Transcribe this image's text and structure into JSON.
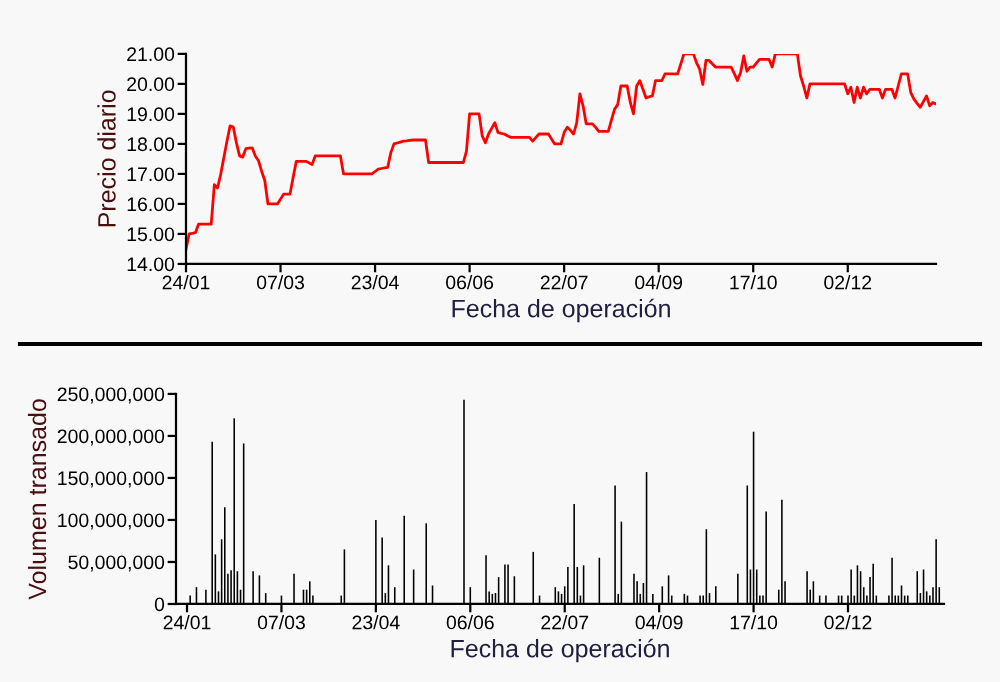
{
  "chart_data": [
    {
      "type": "line",
      "xlabel": "Fecha de operación",
      "ylabel": "Precio diario",
      "categories": [
        "24/01",
        null,
        null,
        null,
        null,
        null,
        null,
        null,
        null,
        null,
        null,
        null,
        null,
        null,
        null,
        null,
        null,
        null,
        null,
        null,
        null,
        null,
        null,
        null,
        null,
        null,
        null,
        null,
        null,
        null,
        "07/03",
        null,
        null,
        null,
        null,
        null,
        null,
        null,
        null,
        null,
        null,
        null,
        null,
        null,
        null,
        null,
        null,
        null,
        null,
        null,
        null,
        null,
        null,
        null,
        null,
        null,
        null,
        null,
        null,
        null,
        "23/04",
        null,
        null,
        null,
        null,
        null,
        null,
        null,
        null,
        null,
        null,
        null,
        null,
        null,
        null,
        null,
        null,
        null,
        null,
        null,
        null,
        null,
        null,
        null,
        null,
        null,
        null,
        null,
        null,
        null,
        "06/06",
        null,
        null,
        null,
        null,
        null,
        null,
        null,
        null,
        null,
        null,
        null,
        null,
        null,
        null,
        null,
        null,
        null,
        null,
        null,
        null,
        null,
        null,
        null,
        null,
        null,
        null,
        null,
        null,
        null,
        "22/07",
        null,
        null,
        null,
        null,
        null,
        null,
        null,
        null,
        null,
        null,
        null,
        null,
        null,
        null,
        null,
        null,
        null,
        null,
        null,
        null,
        null,
        null,
        null,
        null,
        null,
        null,
        null,
        null,
        null,
        "04/09",
        null,
        null,
        null,
        null,
        null,
        null,
        null,
        null,
        null,
        null,
        null,
        null,
        null,
        null,
        null,
        null,
        null,
        null,
        null,
        null,
        null,
        null,
        null,
        null,
        null,
        null,
        null,
        null,
        null,
        "17/10",
        null,
        null,
        null,
        null,
        null,
        null,
        null,
        null,
        null,
        null,
        null,
        null,
        null,
        null,
        null,
        null,
        null,
        null,
        null,
        null,
        null,
        null,
        null,
        null,
        null,
        null,
        null,
        null,
        null,
        "02/12",
        null,
        null,
        null,
        null,
        null,
        null,
        null,
        null,
        null,
        null,
        null,
        null,
        null,
        null,
        null,
        null,
        null,
        null,
        null,
        null,
        null,
        null,
        null,
        null,
        null,
        null,
        null,
        null
      ],
      "ylim": [
        14,
        21
      ],
      "yticks": [
        {
          "value": 14,
          "label": "14.00"
        },
        {
          "value": 15,
          "label": "15.00"
        },
        {
          "value": 16,
          "label": "16.00"
        },
        {
          "value": 17,
          "label": "17.00"
        },
        {
          "value": 18,
          "label": "18.00"
        },
        {
          "value": 19,
          "label": "19.00"
        },
        {
          "value": 20,
          "label": "20.00"
        },
        {
          "value": 21,
          "label": "21.00"
        }
      ],
      "grid": false,
      "marker": "none",
      "line_style": "solid",
      "series": [
        {
          "color": "#ff0000",
          "values": [
            14.49,
            15,
            15.02,
            15.04,
            15.33,
            15.33,
            15.33,
            15.33,
            15.33,
            16.64,
            16.53,
            16.98,
            17.54,
            18.09,
            18.6,
            18.56,
            18.04,
            17.6,
            17.56,
            17.84,
            17.86,
            17.87,
            17.6,
            17.44,
            17.09,
            16.78,
            16,
            16,
            16,
            16,
            16.16,
            16.33,
            16.33,
            16.33,
            16.88,
            17.42,
            17.42,
            17.42,
            17.42,
            17.37,
            17.31,
            17.6,
            17.6,
            17.6,
            17.6,
            17.6,
            17.6,
            17.6,
            17.6,
            17.6,
            17,
            17,
            17,
            17,
            17,
            17,
            17,
            17,
            17,
            17,
            17.08,
            17.16,
            17.18,
            17.2,
            17.22,
            17.71,
            18,
            18.03,
            18.06,
            18.09,
            18.1,
            18.12,
            18.13,
            18.13,
            18.13,
            18.13,
            18.13,
            17.38,
            17.38,
            17.38,
            17.38,
            17.38,
            17.38,
            17.38,
            17.38,
            17.38,
            17.38,
            17.38,
            17.38,
            17.76,
            19,
            19,
            19,
            19,
            18.27,
            18.04,
            18.33,
            18.52,
            18.71,
            18.38,
            18.35,
            18.33,
            18.27,
            18.22,
            18.22,
            18.22,
            18.22,
            18.22,
            18.22,
            18.22,
            18.09,
            18.21,
            18.33,
            18.33,
            18.33,
            18.33,
            18.16,
            18,
            18,
            18,
            18.38,
            18.56,
            18.45,
            18.33,
            18.71,
            19.67,
            19.27,
            18.67,
            18.67,
            18.67,
            18.55,
            18.42,
            18.42,
            18.42,
            18.42,
            18.79,
            19.16,
            19.31,
            19.93,
            19.93,
            19.93,
            19.38,
            19,
            19.93,
            20.11,
            19.82,
            19.53,
            19.57,
            19.6,
            20.11,
            20.11,
            20.11,
            20.33,
            20.33,
            20.33,
            20.33,
            20.33,
            20.66,
            21,
            21,
            21,
            21,
            20.71,
            20.49,
            19.98,
            20.78,
            20.78,
            20.67,
            20.56,
            20.56,
            20.56,
            20.56,
            20.56,
            20.56,
            20.34,
            20.11,
            20.38,
            20.93,
            20.42,
            20.56,
            20.56,
            20.69,
            20.82,
            20.82,
            20.82,
            20.82,
            20.56,
            21,
            21,
            21,
            21,
            21,
            21,
            21,
            21,
            20.27,
            19.93,
            19.53,
            20,
            20,
            20,
            20,
            20,
            20,
            20,
            20,
            20,
            20,
            20,
            20,
            19.67,
            19.89,
            19.38,
            19.89,
            19.53,
            19.89,
            19.67,
            19.82,
            19.82,
            19.82,
            19.82,
            19.53,
            19.82,
            19.82,
            19.82,
            19.53,
            19.93,
            20.33,
            20.33,
            20.33,
            19.71,
            19.49,
            19.35,
            19.22,
            19.41,
            19.6,
            19.27,
            19.38,
            19.33
          ]
        }
      ]
    },
    {
      "type": "bar",
      "xlabel": "Fecha de operación",
      "ylabel": "Volumen transado",
      "categories": [
        "24/01",
        null,
        null,
        null,
        null,
        null,
        null,
        null,
        null,
        null,
        null,
        null,
        null,
        null,
        null,
        null,
        null,
        null,
        null,
        null,
        null,
        null,
        null,
        null,
        null,
        null,
        null,
        null,
        null,
        null,
        "07/03",
        null,
        null,
        null,
        null,
        null,
        null,
        null,
        null,
        null,
        null,
        null,
        null,
        null,
        null,
        null,
        null,
        null,
        null,
        null,
        null,
        null,
        null,
        null,
        null,
        null,
        null,
        null,
        null,
        null,
        "23/04",
        null,
        null,
        null,
        null,
        null,
        null,
        null,
        null,
        null,
        null,
        null,
        null,
        null,
        null,
        null,
        null,
        null,
        null,
        null,
        null,
        null,
        null,
        null,
        null,
        null,
        null,
        null,
        null,
        null,
        "06/06",
        null,
        null,
        null,
        null,
        null,
        null,
        null,
        null,
        null,
        null,
        null,
        null,
        null,
        null,
        null,
        null,
        null,
        null,
        null,
        null,
        null,
        null,
        null,
        null,
        null,
        null,
        null,
        null,
        null,
        "22/07",
        null,
        null,
        null,
        null,
        null,
        null,
        null,
        null,
        null,
        null,
        null,
        null,
        null,
        null,
        null,
        null,
        null,
        null,
        null,
        null,
        null,
        null,
        null,
        null,
        null,
        null,
        null,
        null,
        null,
        "04/09",
        null,
        null,
        null,
        null,
        null,
        null,
        null,
        null,
        null,
        null,
        null,
        null,
        null,
        null,
        null,
        null,
        null,
        null,
        null,
        null,
        null,
        null,
        null,
        null,
        null,
        null,
        null,
        null,
        null,
        "17/10",
        null,
        null,
        null,
        null,
        null,
        null,
        null,
        null,
        null,
        null,
        null,
        null,
        null,
        null,
        null,
        null,
        null,
        null,
        null,
        null,
        null,
        null,
        null,
        null,
        null,
        null,
        null,
        null,
        null,
        "02/12",
        null,
        null,
        null,
        null,
        null,
        null,
        null,
        null,
        null,
        null,
        null,
        null,
        null,
        null,
        null,
        null,
        null,
        null,
        null,
        null,
        null,
        null,
        null,
        null,
        null,
        null,
        null,
        null,
        null
      ],
      "ylim": [
        0,
        250000000
      ],
      "yticks": [
        0,
        {
          "value": 50000000,
          "label": "50,000,000"
        },
        {
          "value": 100000000,
          "label": "100,000,000"
        },
        {
          "value": 150000000,
          "label": "150,000,000"
        },
        {
          "value": 200000000,
          "label": "200,000,000"
        },
        {
          "value": 250000000,
          "label": "250,000,000"
        }
      ],
      "grid": false,
      "series": [
        {
          "color": "#000000",
          "values": [
            null,
            10000000,
            null,
            20000000,
            null,
            null,
            17000000,
            null,
            193000000,
            59000000,
            15000000,
            77000000,
            115000000,
            36000000,
            40000000,
            221000000,
            39000000,
            17000000,
            191000000,
            null,
            null,
            39000000,
            null,
            34000000,
            null,
            13000000,
            null,
            null,
            null,
            null,
            10000000,
            null,
            null,
            null,
            36000000,
            null,
            null,
            17000000,
            17000000,
            27000000,
            10000000,
            null,
            null,
            null,
            null,
            null,
            null,
            null,
            null,
            10000000,
            65000000,
            null,
            null,
            null,
            null,
            null,
            null,
            null,
            null,
            null,
            100000000,
            null,
            79000000,
            13000000,
            46000000,
            null,
            20000000,
            null,
            null,
            105000000,
            null,
            null,
            41000000,
            null,
            null,
            null,
            96000000,
            null,
            22000000,
            null,
            null,
            null,
            null,
            null,
            null,
            null,
            null,
            null,
            243000000,
            null,
            20000000,
            null,
            null,
            null,
            null,
            58000000,
            15000000,
            12000000,
            13000000,
            32000000,
            null,
            47000000,
            47000000,
            null,
            33000000,
            null,
            null,
            null,
            null,
            null,
            62000000,
            null,
            10000000,
            null,
            null,
            null,
            null,
            20000000,
            15000000,
            12000000,
            21000000,
            44000000,
            null,
            119000000,
            44000000,
            10000000,
            46000000,
            null,
            null,
            null,
            null,
            55000000,
            null,
            null,
            null,
            null,
            141000000,
            12000000,
            98000000,
            null,
            null,
            null,
            36000000,
            27000000,
            12000000,
            25000000,
            157000000,
            null,
            12000000,
            null,
            null,
            21000000,
            null,
            34000000,
            10000000,
            null,
            null,
            null,
            12000000,
            10000000,
            null,
            null,
            null,
            10000000,
            10000000,
            89000000,
            13000000,
            null,
            21000000,
            null,
            null,
            null,
            null,
            null,
            null,
            36000000,
            null,
            null,
            141000000,
            41000000,
            205000000,
            41000000,
            10000000,
            10000000,
            110000000,
            null,
            null,
            null,
            17000000,
            124000000,
            27000000,
            null,
            null,
            null,
            null,
            null,
            null,
            39000000,
            17000000,
            27000000,
            null,
            10000000,
            null,
            10000000,
            null,
            null,
            null,
            10000000,
            10000000,
            null,
            10000000,
            41000000,
            10000000,
            46000000,
            39000000,
            20000000,
            10000000,
            32000000,
            48000000,
            10000000,
            null,
            null,
            null,
            10000000,
            55000000,
            10000000,
            10000000,
            22000000,
            10000000,
            10000000,
            null,
            null,
            39000000,
            13000000,
            41000000,
            15000000,
            10000000,
            20000000,
            77000000,
            20000000
          ]
        }
      ]
    }
  ]
}
